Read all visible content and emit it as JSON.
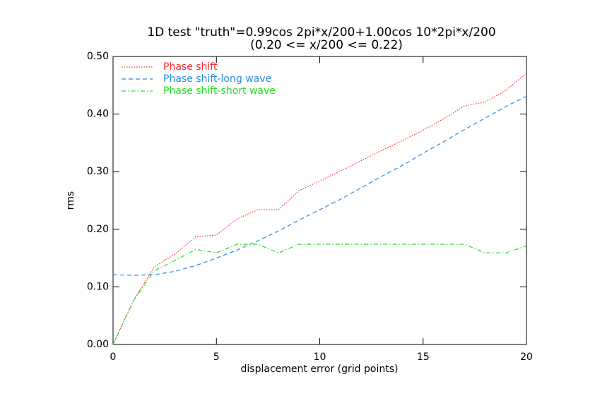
{
  "chart_data": {
    "type": "line",
    "title": "1D test \"truth\"=0.99cos 2pi*x/200+1.00cos 10*2pi*x/200",
    "subtitle": "(0.20 <= x/200 <= 0.22)",
    "x_label": "displacement error (grid points)",
    "y_label": "rms",
    "x": [
      0,
      1,
      2,
      3,
      4,
      5,
      6,
      7,
      8,
      9,
      10,
      11,
      12,
      13,
      14,
      15,
      16,
      17,
      18,
      19,
      20
    ],
    "xlim": [
      0,
      20
    ],
    "xticks": [
      0,
      5,
      10,
      15,
      20
    ],
    "ylim": [
      0,
      0.5
    ],
    "yticks": [
      {
        "value": 0,
        "label": "0.00"
      },
      {
        "value": 0.1,
        "label": "0.10"
      },
      {
        "value": 0.2,
        "label": "0.20"
      },
      {
        "value": 0.3,
        "label": "0.30"
      },
      {
        "value": 0.4,
        "label": "0.40"
      },
      {
        "value": 0.5,
        "label": "0.50"
      }
    ],
    "legend": "upper left",
    "series": [
      {
        "name": "Phase shift",
        "color": "#ff2a2a",
        "dash": "dotted",
        "values": [
          0,
          0.077,
          0.135,
          0.157,
          0.187,
          0.19,
          0.218,
          0.234,
          0.234,
          0.267,
          0.284,
          0.301,
          0.319,
          0.337,
          0.354,
          0.372,
          0.392,
          0.414,
          0.421,
          0.441,
          0.471
        ]
      },
      {
        "name": "Phase shift-long wave",
        "color": "#2a8ae0",
        "dash": "dashed",
        "values": [
          0.121,
          0.12,
          0.121,
          0.127,
          0.137,
          0.15,
          0.164,
          0.18,
          0.197,
          0.216,
          0.234,
          0.252,
          0.272,
          0.292,
          0.311,
          0.332,
          0.352,
          0.373,
          0.393,
          0.413,
          0.431
        ]
      },
      {
        "name": "Phase shift-short wave",
        "color": "#22dd22",
        "dash": "dashdot",
        "values": [
          0,
          0.077,
          0.128,
          0.146,
          0.165,
          0.159,
          0.174,
          0.174,
          0.159,
          0.174,
          0.174,
          0.174,
          0.174,
          0.174,
          0.174,
          0.174,
          0.174,
          0.174,
          0.159,
          0.159,
          0.171
        ]
      }
    ]
  }
}
